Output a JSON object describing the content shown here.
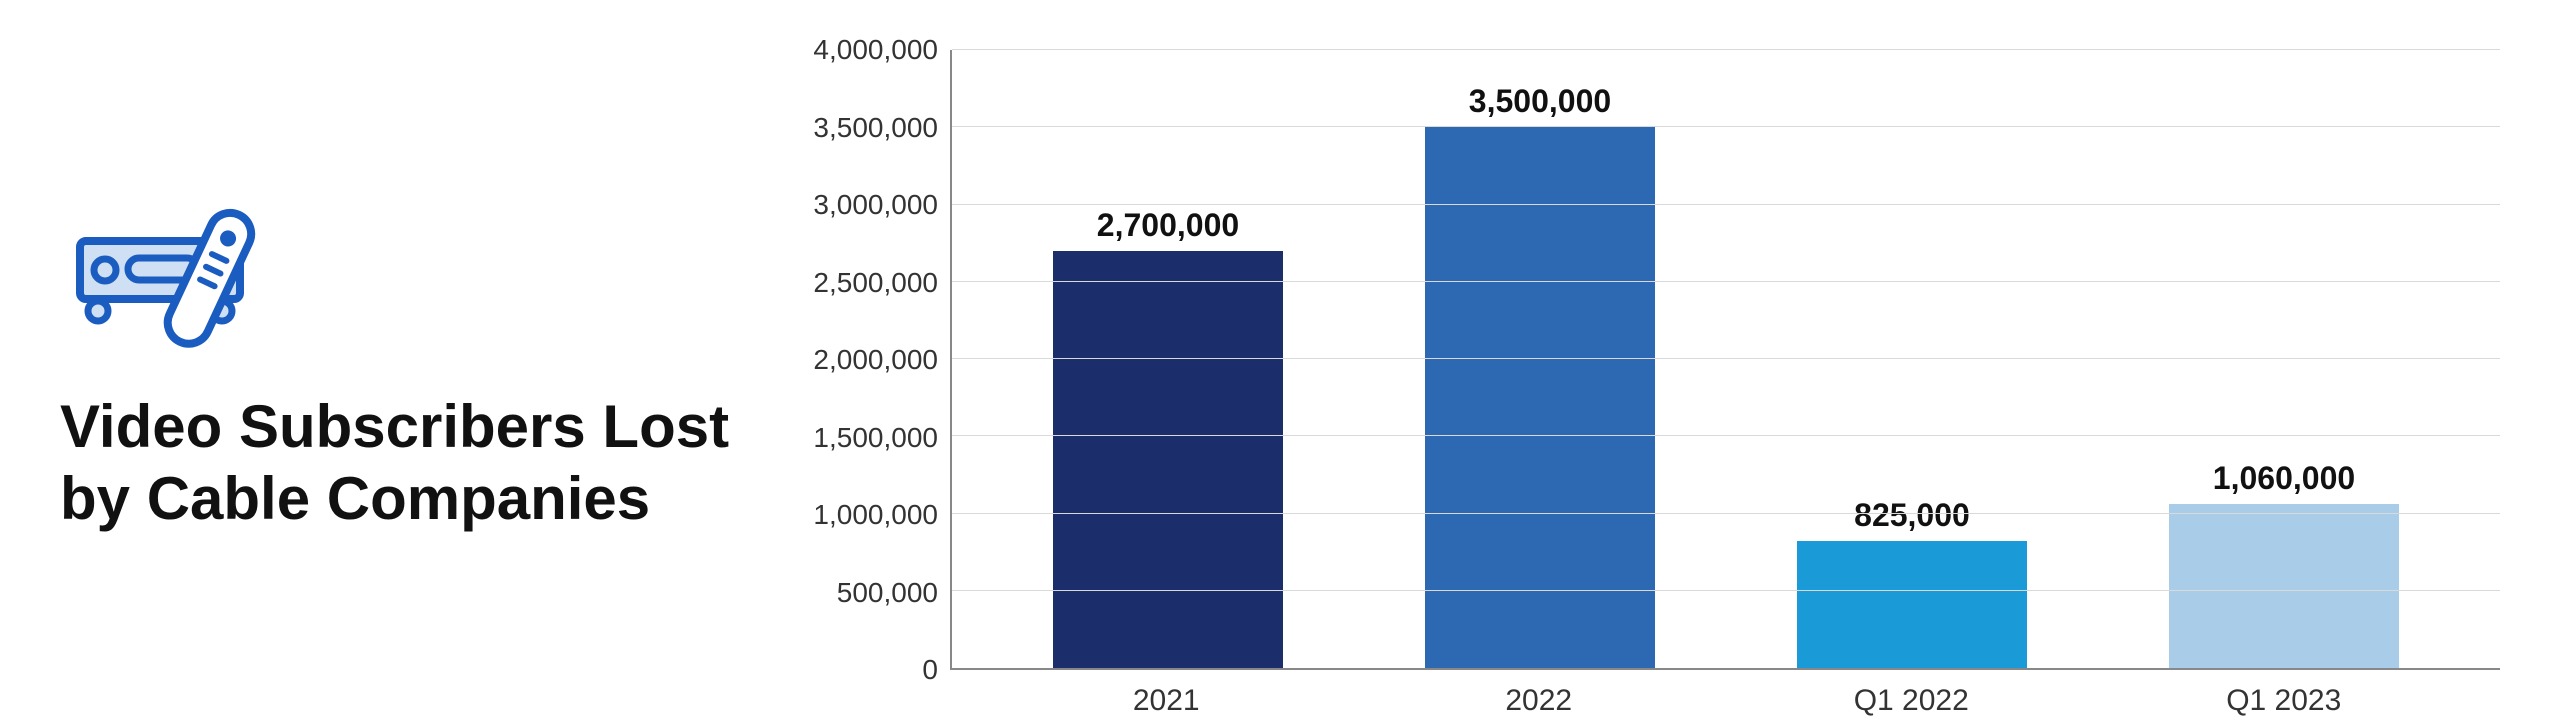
{
  "title_line1": "Video Subscribers Lost",
  "title_line2": "by Cable Companies",
  "icon_color": "#1a5cbf",
  "icon_fill": "#cfe0f5",
  "chart": {
    "type": "bar",
    "categories": [
      "2021",
      "2022",
      "Q1 2022",
      "Q1 2023"
    ],
    "values": [
      2700000,
      3500000,
      825000,
      1060000
    ],
    "value_labels": [
      "2,700,000",
      "3,500,000",
      "825,000",
      "1,060,000"
    ],
    "bar_colors": [
      "#1b2e6b",
      "#2d68b2",
      "#1a9bd7",
      "#a9cde9"
    ],
    "ylim": [
      0,
      4000000
    ],
    "ytick_step": 500000,
    "ytick_labels": [
      "0",
      "500,000",
      "1,000,000",
      "1,500,000",
      "2,000,000",
      "2,500,000",
      "3,000,000",
      "3,500,000",
      "4,000,000"
    ],
    "background_color": "#ffffff",
    "grid_color": "#d9d9d9",
    "axis_color": "#888888",
    "bar_width": 0.7,
    "label_fontsize": 30,
    "value_label_fontsize": 32,
    "tick_fontsize": 28,
    "title_fontsize": 60
  }
}
